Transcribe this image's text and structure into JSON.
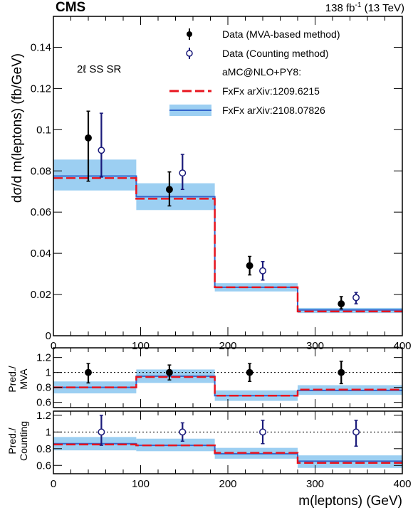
{
  "header": {
    "experiment": "CMS",
    "lumi_text": "138 fb",
    "lumi_exp": "-1",
    "energy_text": " (13 TeV)"
  },
  "chart_data": {
    "type": "line",
    "region_label": "2ℓ SS SR",
    "x_bins": [
      0,
      95,
      185,
      280,
      400
    ],
    "xlabel": "m(leptons) (GeV)",
    "xlim": [
      0,
      400
    ],
    "x_ticks": [
      0,
      100,
      200,
      300,
      400
    ],
    "main_panel": {
      "ylabel": "dσ/d m(leptons) (fb/GeV)",
      "ylim": [
        0,
        0.155
      ],
      "y_ticks": [
        0,
        0.02,
        0.04,
        0.06,
        0.08,
        0.1,
        0.12,
        0.14
      ],
      "y_tick_labels": [
        "0",
        "0.02",
        "0.04",
        "0.06",
        "0.08",
        "0.1",
        "0.12",
        "0.14"
      ],
      "series": [
        {
          "name": "Data (MVA-based method)",
          "kind": "points",
          "style": "filled",
          "color": "#000000",
          "x": [
            40,
            133,
            225,
            330
          ],
          "y": [
            0.096,
            0.071,
            0.034,
            0.0155
          ],
          "err_up": [
            0.013,
            0.0085,
            0.0045,
            0.0035
          ],
          "err_down": [
            0.021,
            0.008,
            0.0045,
            0.0025
          ]
        },
        {
          "name": "Data (Counting method)",
          "kind": "points",
          "style": "open",
          "color": "#1a1a7a",
          "x": [
            55,
            148,
            240,
            347
          ],
          "y": [
            0.09,
            0.079,
            0.0315,
            0.0185
          ],
          "err_up": [
            0.018,
            0.009,
            0.0045,
            0.0025
          ],
          "err_down": [
            0.013,
            0.008,
            0.0045,
            0.003
          ]
        },
        {
          "name": "FxFx arXiv:1209.6215",
          "kind": "step",
          "color": "#e8141e",
          "values": [
            0.0765,
            0.0665,
            0.0235,
            0.0118
          ]
        },
        {
          "name": "FxFx arXiv:2108.07826",
          "kind": "step_band",
          "color": "#3366cc",
          "band_color": "#9ccff2",
          "values": [
            0.0775,
            0.0675,
            0.0235,
            0.0125
          ],
          "band_low": [
            0.0705,
            0.061,
            0.0215,
            0.011
          ],
          "band_high": [
            0.0855,
            0.074,
            0.0255,
            0.0135
          ]
        }
      ],
      "legend_header": "aMC@NLO+PY8:"
    },
    "ratio_panels": [
      {
        "ylabel_line1": "Pred./",
        "ylabel_line2": "MVA",
        "ylim": [
          0.53,
          1.33
        ],
        "y_ticks": [
          0.6,
          0.8,
          1.0,
          1.2
        ],
        "y_tick_labels": [
          "0.6",
          "0.8",
          "1",
          "1.2"
        ],
        "points": {
          "x": [
            40,
            133,
            225,
            330
          ],
          "y": [
            1.0,
            1.0,
            1.0,
            1.0
          ],
          "err_up": [
            0.12,
            0.1,
            0.12,
            0.15
          ],
          "err_down": [
            0.14,
            0.1,
            0.12,
            0.15
          ]
        },
        "red_line": [
          0.8,
          0.94,
          0.69,
          0.77
        ],
        "blue_line": [
          0.8,
          0.95,
          0.69,
          0.76
        ],
        "band_low": [
          0.72,
          0.86,
          0.62,
          0.7
        ],
        "band_high": [
          0.88,
          1.04,
          0.76,
          0.83
        ]
      },
      {
        "ylabel_line1": "Pred./",
        "ylabel_line2": "Counting",
        "ylim": [
          0.5,
          1.25
        ],
        "y_ticks": [
          0.6,
          0.8,
          1.0,
          1.2
        ],
        "y_tick_labels": [
          "0.6",
          "0.8",
          "1",
          "1.2"
        ],
        "points": {
          "x": [
            55,
            148,
            240,
            347
          ],
          "y": [
            1.0,
            1.0,
            1.0,
            1.0
          ],
          "err_up": [
            0.2,
            0.11,
            0.14,
            0.14
          ],
          "err_down": [
            0.16,
            0.11,
            0.14,
            0.17
          ]
        },
        "red_line": [
          0.85,
          0.84,
          0.75,
          0.63
        ],
        "blue_line": [
          0.86,
          0.84,
          0.74,
          0.65
        ],
        "band_low": [
          0.78,
          0.77,
          0.68,
          0.57
        ],
        "band_high": [
          0.94,
          0.92,
          0.81,
          0.72
        ]
      }
    ]
  }
}
